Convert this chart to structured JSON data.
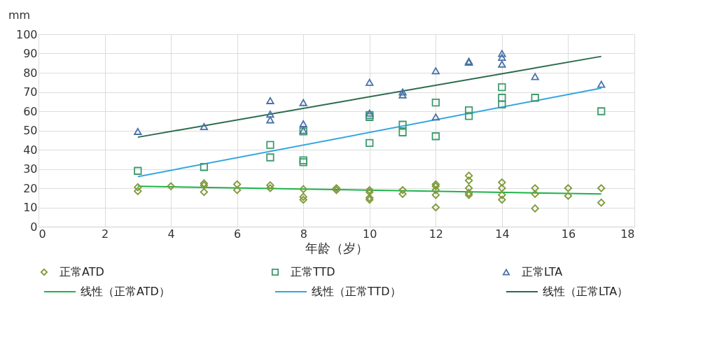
{
  "chart_data": {
    "type": "scatter",
    "xlabel": "年龄（岁）",
    "ylabel": "mm",
    "xlim": [
      0,
      18
    ],
    "xticks": [
      0,
      2,
      4,
      6,
      8,
      10,
      12,
      14,
      16,
      18
    ],
    "ylim": [
      0,
      100
    ],
    "yticks": [
      0,
      10,
      20,
      30,
      40,
      50,
      60,
      70,
      80,
      90,
      100
    ],
    "grid": true,
    "legend": "bottom",
    "series": [
      {
        "name": "正常ATD",
        "marker": "diamond",
        "color": "#7f9a3a",
        "x": [
          3,
          3,
          4,
          5,
          5,
          5,
          6,
          6,
          7,
          7,
          8,
          8,
          8,
          9,
          9,
          10,
          10,
          10,
          10,
          11,
          11,
          12,
          12,
          12,
          12,
          12,
          13,
          13,
          13,
          13,
          13,
          14,
          14,
          14,
          14,
          15,
          15,
          15,
          16,
          16,
          17,
          17
        ],
        "values": [
          20.5,
          18.5,
          21,
          22.5,
          21.5,
          18,
          22,
          19,
          21.5,
          20,
          19.5,
          15.5,
          14,
          20,
          19,
          19,
          18,
          15,
          14,
          19,
          17,
          22,
          21,
          19,
          16.5,
          10,
          26.5,
          24,
          20,
          17.5,
          16.5,
          23,
          20,
          16.5,
          14,
          20,
          17,
          9.5,
          20,
          16,
          20,
          12.5
        ]
      },
      {
        "name": "正常TTD",
        "marker": "square",
        "color": "#3f9a6e",
        "x": [
          3,
          5,
          7,
          7,
          8,
          8,
          8,
          10,
          10,
          10,
          11,
          11,
          12,
          12,
          13,
          13,
          14,
          14,
          14,
          15,
          17
        ],
        "values": [
          29,
          31,
          42.5,
          36,
          49.5,
          34.5,
          33.5,
          58,
          57,
          43.5,
          53,
          49,
          64.5,
          47,
          60.5,
          57.5,
          72.5,
          67,
          63.5,
          67,
          60
        ]
      },
      {
        "name": "正常LTA",
        "marker": "triangle",
        "color": "#4a72a8",
        "x": [
          3,
          5,
          7,
          7,
          7,
          8,
          8,
          8,
          10,
          10,
          11,
          11,
          12,
          12,
          13,
          13,
          14,
          14,
          14,
          15,
          17
        ],
        "values": [
          49.5,
          52,
          65.5,
          58.5,
          55.5,
          64.5,
          53.5,
          50,
          75,
          59,
          70,
          68.5,
          81,
          57,
          86,
          85.5,
          90,
          88,
          84.5,
          78,
          74
        ]
      },
      {
        "name": "线性（正常ATD）",
        "type": "line",
        "line_style": "solid",
        "color": "#1db34a",
        "x": [
          3,
          17
        ],
        "values": [
          21,
          17
        ]
      },
      {
        "name": "线性（正常TTD）",
        "type": "line",
        "line_style": "solid",
        "color": "#33a6e0",
        "x": [
          3,
          17
        ],
        "values": [
          26,
          72
        ]
      },
      {
        "name": "线性（正常LTA）",
        "type": "line",
        "line_style": "solid",
        "color": "#2a6b4c",
        "x": [
          3,
          17
        ],
        "values": [
          46.5,
          88.5
        ]
      }
    ]
  }
}
